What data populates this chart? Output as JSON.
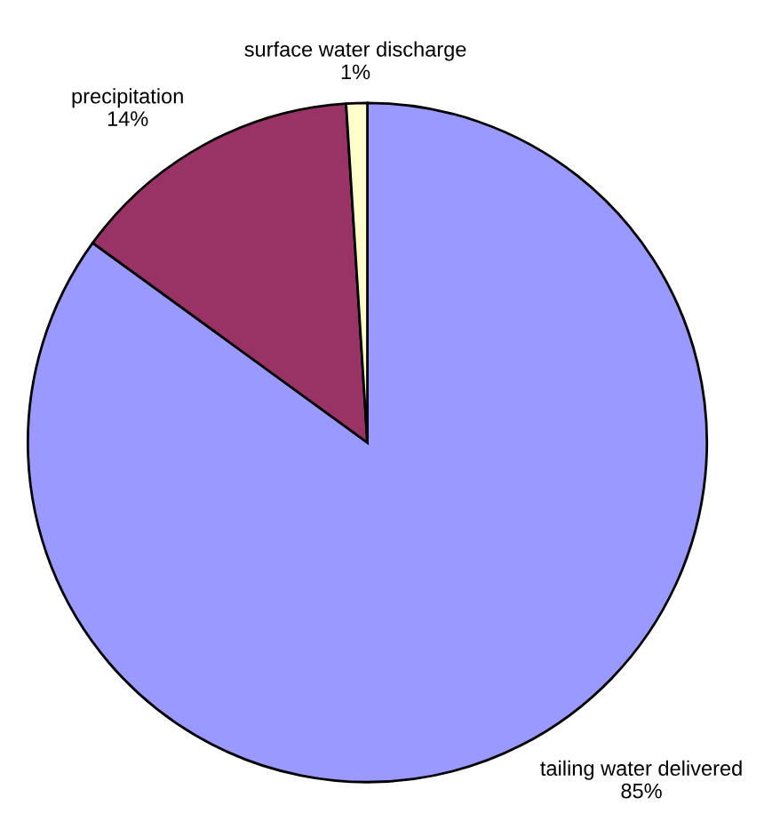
{
  "chart_data": {
    "type": "pie",
    "categories": [
      "tailing water delivered",
      "precipitation",
      "surface water discharge"
    ],
    "values": [
      85,
      14,
      1
    ],
    "colors": [
      "#9999ff",
      "#993366",
      "#ffffcc"
    ],
    "value_labels": [
      "85%",
      "14%",
      "1%"
    ],
    "legend": false
  }
}
